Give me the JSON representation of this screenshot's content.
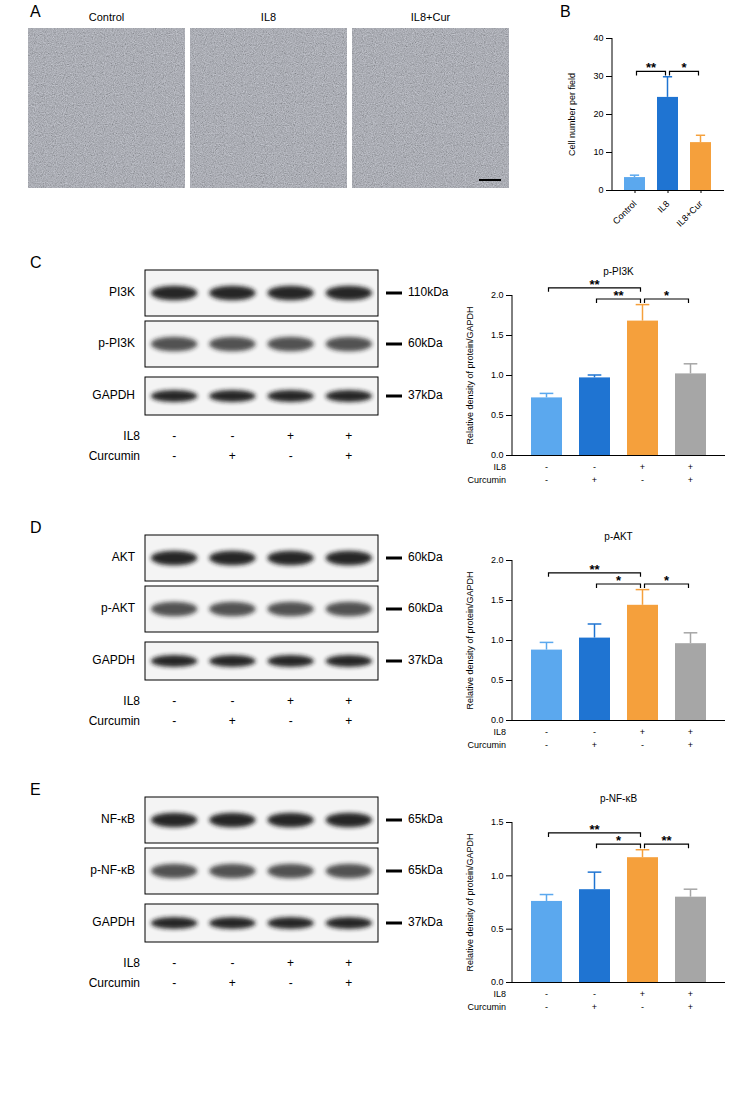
{
  "panels": {
    "labels": [
      "A",
      "B",
      "C",
      "D",
      "E"
    ]
  },
  "micrographs": {
    "titles": [
      "Control",
      "IL8",
      "IL8+Cur"
    ]
  },
  "blots": [
    {
      "rows": [
        {
          "label": "PI3K",
          "kda": "110kDa"
        },
        {
          "label": "p-PI3K",
          "kda": "60kDa"
        },
        {
          "label": "GAPDH",
          "kda": "37kDa"
        }
      ],
      "treatments": [
        {
          "label": "IL8",
          "signs": [
            "-",
            "-",
            "+",
            "+"
          ]
        },
        {
          "label": "Curcumin",
          "signs": [
            "-",
            "+",
            "-",
            "+"
          ]
        }
      ]
    },
    {
      "rows": [
        {
          "label": "AKT",
          "kda": "60kDa"
        },
        {
          "label": "p-AKT",
          "kda": "60kDa"
        },
        {
          "label": "GAPDH",
          "kda": "37kDa"
        }
      ],
      "treatments": [
        {
          "label": "IL8",
          "signs": [
            "-",
            "-",
            "+",
            "+"
          ]
        },
        {
          "label": "Curcumin",
          "signs": [
            "-",
            "+",
            "-",
            "+"
          ]
        }
      ]
    },
    {
      "rows": [
        {
          "label": "NF-κB",
          "kda": "65kDa"
        },
        {
          "label": "p-NF-κB",
          "kda": "65kDa"
        },
        {
          "label": "GAPDH",
          "kda": "37kDa"
        }
      ],
      "treatments": [
        {
          "label": "IL8",
          "signs": [
            "-",
            "-",
            "+",
            "+"
          ]
        },
        {
          "label": "Curcumin",
          "signs": [
            "-",
            "+",
            "-",
            "+"
          ]
        }
      ]
    }
  ],
  "chart_data": [
    {
      "type": "bar",
      "y_label": "Cell number per field",
      "categories": [
        "Control",
        "IL8",
        "IL8+Cur"
      ],
      "values": [
        3.4,
        24.5,
        12.6
      ],
      "errors": [
        0.5,
        5.3,
        1.8
      ],
      "colors": [
        "#5ba8ee",
        "#1f74d2",
        "#f5a03c"
      ],
      "ylim": [
        0,
        40
      ],
      "yticks": [
        0,
        10,
        20,
        30,
        40
      ],
      "annotations": [
        {
          "from": 0,
          "to": 1,
          "label": "**"
        },
        {
          "from": 1,
          "to": 2,
          "label": "*"
        }
      ]
    },
    {
      "type": "bar",
      "title": "p-PI3K",
      "y_label": "Relative density of protein/GAPDH",
      "categories": [
        null,
        null,
        null,
        null
      ],
      "tick_labels": "y",
      "values": [
        0.72,
        0.97,
        1.68,
        1.02
      ],
      "errors": [
        0.05,
        0.03,
        0.2,
        0.12
      ],
      "colors": [
        "#5ba8ee",
        "#1f74d2",
        "#f5a03c",
        "#a6a6a6"
      ],
      "ylim": [
        0,
        2.0
      ],
      "yticks": [
        {
          "value": 0,
          "label": "0.0"
        },
        0.5,
        {
          "value": 1,
          "label": "1.0"
        },
        1.5,
        {
          "value": 2,
          "label": "2.0"
        }
      ],
      "treatments": [
        {
          "label": "IL8",
          "signs": [
            "-",
            "-",
            "+",
            "+"
          ]
        },
        {
          "label": "Curcumin",
          "signs": [
            "-",
            "+",
            "-",
            "+"
          ]
        }
      ],
      "annotations": [
        {
          "from": 0,
          "to": 2,
          "label": "**"
        },
        {
          "from": 1,
          "to": 2,
          "label": "**"
        },
        {
          "from": 2,
          "to": 3,
          "label": "*"
        }
      ]
    },
    {
      "type": "bar",
      "title": "p-AKT",
      "y_label": "Relative density of protein/GAPDH",
      "categories": [
        null,
        null,
        null,
        null
      ],
      "tick_labels": "y",
      "values": [
        0.88,
        1.03,
        1.44,
        0.96
      ],
      "errors": [
        0.09,
        0.17,
        0.19,
        0.13
      ],
      "colors": [
        "#5ba8ee",
        "#1f74d2",
        "#f5a03c",
        "#a6a6a6"
      ],
      "ylim": [
        0,
        2.0
      ],
      "yticks": [
        {
          "value": 0,
          "label": "0.0"
        },
        0.5,
        {
          "value": 1,
          "label": "1.0"
        },
        1.5,
        {
          "value": 2,
          "label": "2.0"
        }
      ],
      "treatments": [
        {
          "label": "IL8",
          "signs": [
            "-",
            "-",
            "+",
            "+"
          ]
        },
        {
          "label": "Curcumin",
          "signs": [
            "-",
            "+",
            "-",
            "+"
          ]
        }
      ],
      "annotations": [
        {
          "from": 0,
          "to": 2,
          "label": "**"
        },
        {
          "from": 1,
          "to": 2,
          "label": "*"
        },
        {
          "from": 2,
          "to": 3,
          "label": "*"
        }
      ]
    },
    {
      "type": "bar",
      "title": "p-NF-κB",
      "y_label": "Relative density of protein/GAPDH",
      "categories": [
        null,
        null,
        null,
        null
      ],
      "tick_labels": "y",
      "values": [
        0.76,
        0.87,
        1.17,
        0.8
      ],
      "errors": [
        0.06,
        0.16,
        0.07,
        0.07
      ],
      "colors": [
        "#5ba8ee",
        "#1f74d2",
        "#f5a03c",
        "#a6a6a6"
      ],
      "ylim": [
        0,
        1.5
      ],
      "yticks": [
        {
          "value": 0,
          "label": "0.0"
        },
        0.5,
        {
          "value": 1,
          "label": "1.0"
        },
        1.5
      ],
      "treatments": [
        {
          "label": "IL8",
          "signs": [
            "-",
            "-",
            "+",
            "+"
          ]
        },
        {
          "label": "Curcumin",
          "signs": [
            "-",
            "+",
            "-",
            "+"
          ]
        }
      ],
      "annotations": [
        {
          "from": 0,
          "to": 2,
          "label": "**"
        },
        {
          "from": 1,
          "to": 2,
          "label": "*"
        },
        {
          "from": 2,
          "to": 3,
          "label": "**"
        }
      ]
    }
  ]
}
